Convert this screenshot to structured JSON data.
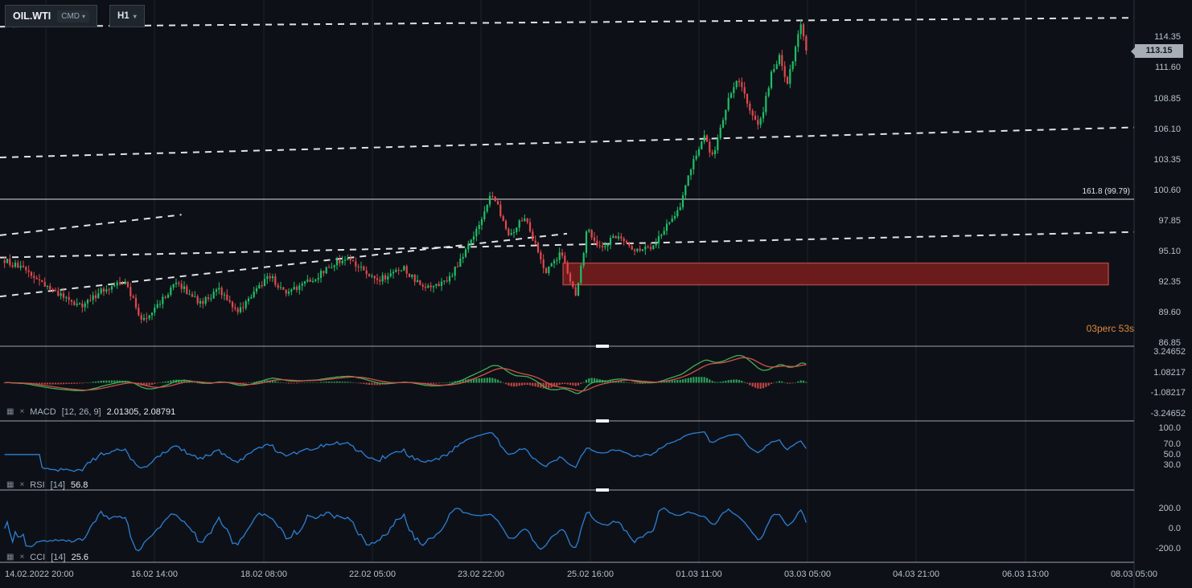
{
  "toolbar": {
    "symbol": "OIL.WTI",
    "market_badge": "CMD",
    "timeframe": "H1"
  },
  "price_axis": {
    "current_price": "113.15",
    "ticks": [
      "114.35",
      "111.60",
      "108.85",
      "106.10",
      "103.35",
      "100.60",
      "97.85",
      "95.10",
      "92.35",
      "89.60",
      "86.85"
    ]
  },
  "time_axis": {
    "labels": [
      "14.02.2022 20:00",
      "16.02 14:00",
      "18.02 08:00",
      "22.02 05:00",
      "23.02 22:00",
      "25.02 16:00",
      "01.03 11:00",
      "03.03 05:00",
      "04.03 21:00",
      "06.03 13:00",
      "08.03 05:00"
    ]
  },
  "indicators": {
    "macd": {
      "name": "MACD",
      "params": "[12, 26, 9]",
      "values": "2.01305,  2.08791",
      "scale": [
        "3.24652",
        "1.08217",
        "-1.08217",
        "-3.24652"
      ]
    },
    "rsi": {
      "name": "RSI",
      "params": "[14]",
      "values": "56.8",
      "scale": [
        "100.0",
        "70.0",
        "50.0",
        "30.0"
      ]
    },
    "cci": {
      "name": "CCI",
      "params": "[14]",
      "values": "25.6",
      "scale": [
        "200.0",
        "0.0",
        "-200.0"
      ]
    }
  },
  "overlays": {
    "fib_label": "161.8 (99.79)",
    "countdown": "03perc 53s"
  },
  "chart_data": {
    "type": "candlestick",
    "symbol": "OIL.WTI",
    "timeframe": "H1",
    "current_price": 113.15,
    "y_axis_range": [
      86.6,
      117.7
    ],
    "fib_level": 99.79,
    "candle_count": 300,
    "price_anchors": [
      [
        0.0,
        94.3
      ],
      [
        0.03,
        93.2
      ],
      [
        0.06,
        91.5
      ],
      [
        0.095,
        90.1
      ],
      [
        0.125,
        91.8
      ],
      [
        0.15,
        92.3
      ],
      [
        0.172,
        88.9
      ],
      [
        0.2,
        91.0
      ],
      [
        0.215,
        92.3
      ],
      [
        0.245,
        90.4
      ],
      [
        0.268,
        91.6
      ],
      [
        0.292,
        89.7
      ],
      [
        0.33,
        93.0
      ],
      [
        0.35,
        91.3
      ],
      [
        0.385,
        92.6
      ],
      [
        0.408,
        93.8
      ],
      [
        0.428,
        94.6
      ],
      [
        0.462,
        92.4
      ],
      [
        0.497,
        93.6
      ],
      [
        0.523,
        91.7
      ],
      [
        0.553,
        92.5
      ],
      [
        0.584,
        96.2
      ],
      [
        0.608,
        100.4
      ],
      [
        0.63,
        96.6
      ],
      [
        0.648,
        98.3
      ],
      [
        0.675,
        93.3
      ],
      [
        0.695,
        95.1
      ],
      [
        0.713,
        90.9
      ],
      [
        0.727,
        97.3
      ],
      [
        0.742,
        95.4
      ],
      [
        0.762,
        96.4
      ],
      [
        0.788,
        95.3
      ],
      [
        0.808,
        95.6
      ],
      [
        0.828,
        97.8
      ],
      [
        0.843,
        99.0
      ],
      [
        0.858,
        103.2
      ],
      [
        0.872,
        105.4
      ],
      [
        0.884,
        103.6
      ],
      [
        0.904,
        109.0
      ],
      [
        0.915,
        110.9
      ],
      [
        0.928,
        107.9
      ],
      [
        0.941,
        106.1
      ],
      [
        0.957,
        111.3
      ],
      [
        0.968,
        112.8
      ],
      [
        0.975,
        109.9
      ],
      [
        0.993,
        115.4
      ],
      [
        1.0,
        113.15
      ]
    ],
    "zone": {
      "x1": 0.4965,
      "x2": 0.9773,
      "price_top": 94.05,
      "price_bottom": 92.1
    },
    "trendlines": [
      {
        "x1": 0.0,
        "p1": 115.3,
        "x2": 1.0,
        "p2": 116.1
      },
      {
        "x1": 0.0,
        "p1": 103.55,
        "x2": 1.0,
        "p2": 106.25
      },
      {
        "x1": 0.0,
        "p1": 96.55,
        "x2": 0.16,
        "p2": 98.4
      },
      {
        "x1": 0.0,
        "p1": 94.55,
        "x2": 1.0,
        "p2": 96.85
      },
      {
        "x1": 0.0,
        "p1": 91.05,
        "x2": 0.5,
        "p2": 96.7
      }
    ],
    "colors": {
      "up": "#1fbf66",
      "down": "#e2484d",
      "macd_line": "#3fae57",
      "macd_signal": "#d4504a",
      "hist_up": "#2e9e57",
      "hist_down": "#c24440",
      "oscillator": "#2d7fd6",
      "zone_fill": "#6b1b1b",
      "zone_stroke": "#a84341",
      "trendline": "#f2f5f7"
    }
  }
}
